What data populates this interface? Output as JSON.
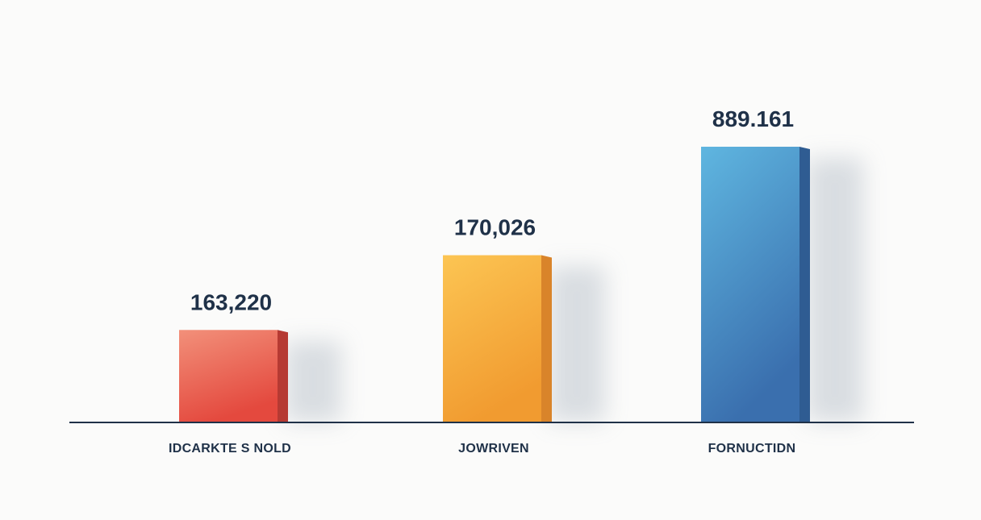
{
  "chart_data": {
    "type": "bar",
    "categories": [
      "IDCARKTE S NOLD",
      "JOWRIVEN",
      "FORNUCTIDN"
    ],
    "values": [
      163220,
      170026,
      889161
    ],
    "value_labels": [
      "163,220",
      "170,026",
      "889.161"
    ],
    "title": "",
    "xlabel": "",
    "ylabel": "",
    "grid": false,
    "legend": "none",
    "colors": [
      {
        "front_top": "#f2907a",
        "front_bottom": "#e4493e",
        "side": "#b63a33"
      },
      {
        "front_top": "#fcc553",
        "front_bottom": "#f19b30",
        "side": "#d9842a"
      },
      {
        "front_top": "#5fb6e0",
        "front_bottom": "#3a6fae",
        "side": "#2f5c92"
      }
    ],
    "axis_color": "#1f3148"
  }
}
